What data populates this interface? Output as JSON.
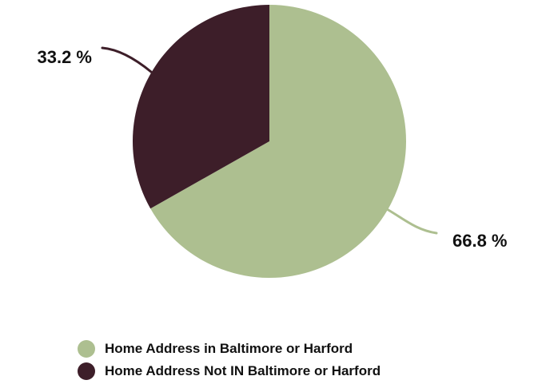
{
  "chart_data": {
    "type": "pie",
    "title": "",
    "categories": [
      "Home Address in Baltimore or Harford",
      "Home Address Not IN Baltimore or Harford"
    ],
    "values": [
      66.8,
      33.2
    ],
    "labels": [
      "66.8 %",
      "33.2 %"
    ],
    "colors": [
      "#adbf90",
      "#3d1e29"
    ],
    "legend_placement": "bottom"
  }
}
